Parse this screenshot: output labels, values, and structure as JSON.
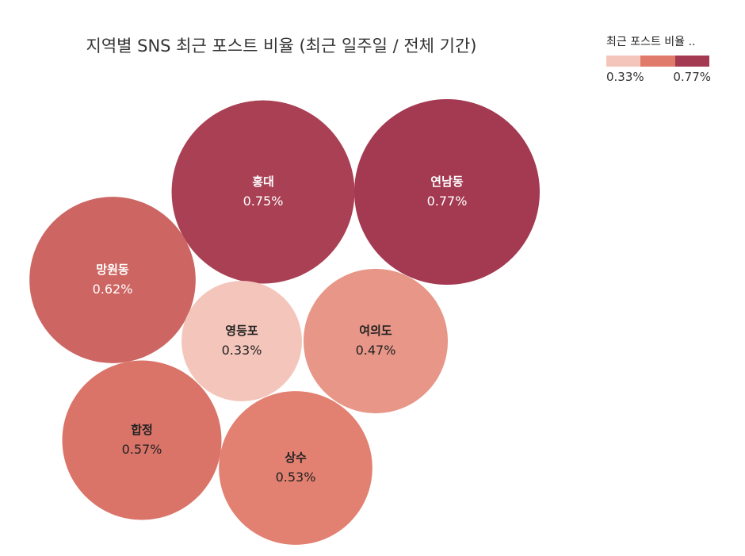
{
  "chart_data": {
    "type": "bubble",
    "title": "지역별 SNS 최근 포스트 비율 (최근 일주일 / 전체 기간)",
    "legend": {
      "title": "최근 포스트 비율 ..",
      "min_label": "0.33%",
      "max_label": "0.77%",
      "colors": [
        "#f4c6bb",
        "#e07a6a",
        "#a33a52"
      ]
    },
    "series": [
      {
        "name": "홍대",
        "value": 0.75,
        "label": "0.75%"
      },
      {
        "name": "연남동",
        "value": 0.77,
        "label": "0.77%"
      },
      {
        "name": "망원동",
        "value": 0.62,
        "label": "0.62%"
      },
      {
        "name": "영등포",
        "value": 0.33,
        "label": "0.33%"
      },
      {
        "name": "여의도",
        "value": 0.47,
        "label": "0.47%"
      },
      {
        "name": "합정",
        "value": 0.57,
        "label": "0.57%"
      },
      {
        "name": "상수",
        "value": 0.53,
        "label": "0.53%"
      }
    ]
  }
}
